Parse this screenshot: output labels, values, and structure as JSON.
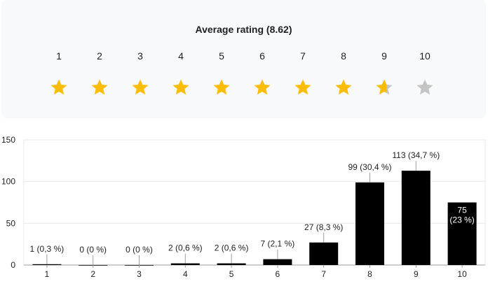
{
  "rating": {
    "title": "Average rating (8.62)",
    "value": 8.62,
    "max": 10,
    "scale": [
      "1",
      "2",
      "3",
      "4",
      "5",
      "6",
      "7",
      "8",
      "9",
      "10"
    ],
    "star_color": "#fbbc04",
    "star_empty_color": "#c4c4c4"
  },
  "chart_data": {
    "type": "bar",
    "categories": [
      "1",
      "2",
      "3",
      "4",
      "5",
      "6",
      "7",
      "8",
      "9",
      "10"
    ],
    "values": [
      1,
      0,
      0,
      2,
      2,
      7,
      27,
      99,
      113,
      75
    ],
    "labels": [
      "1 (0,3 %)",
      "0 (0 %)",
      "0 (0 %)",
      "2 (0,6 %)",
      "2 (0,6 %)",
      "7 (2,1 %)",
      "27 (8,3 %)",
      "99 (30,4 %)",
      "113 (34,7 %)",
      "75 (23 %)"
    ],
    "ylim": [
      0,
      150
    ],
    "yticks": [
      0,
      50,
      100,
      150
    ],
    "xlabel": "",
    "ylabel": "",
    "grid": true,
    "bar_color": "#000000"
  }
}
